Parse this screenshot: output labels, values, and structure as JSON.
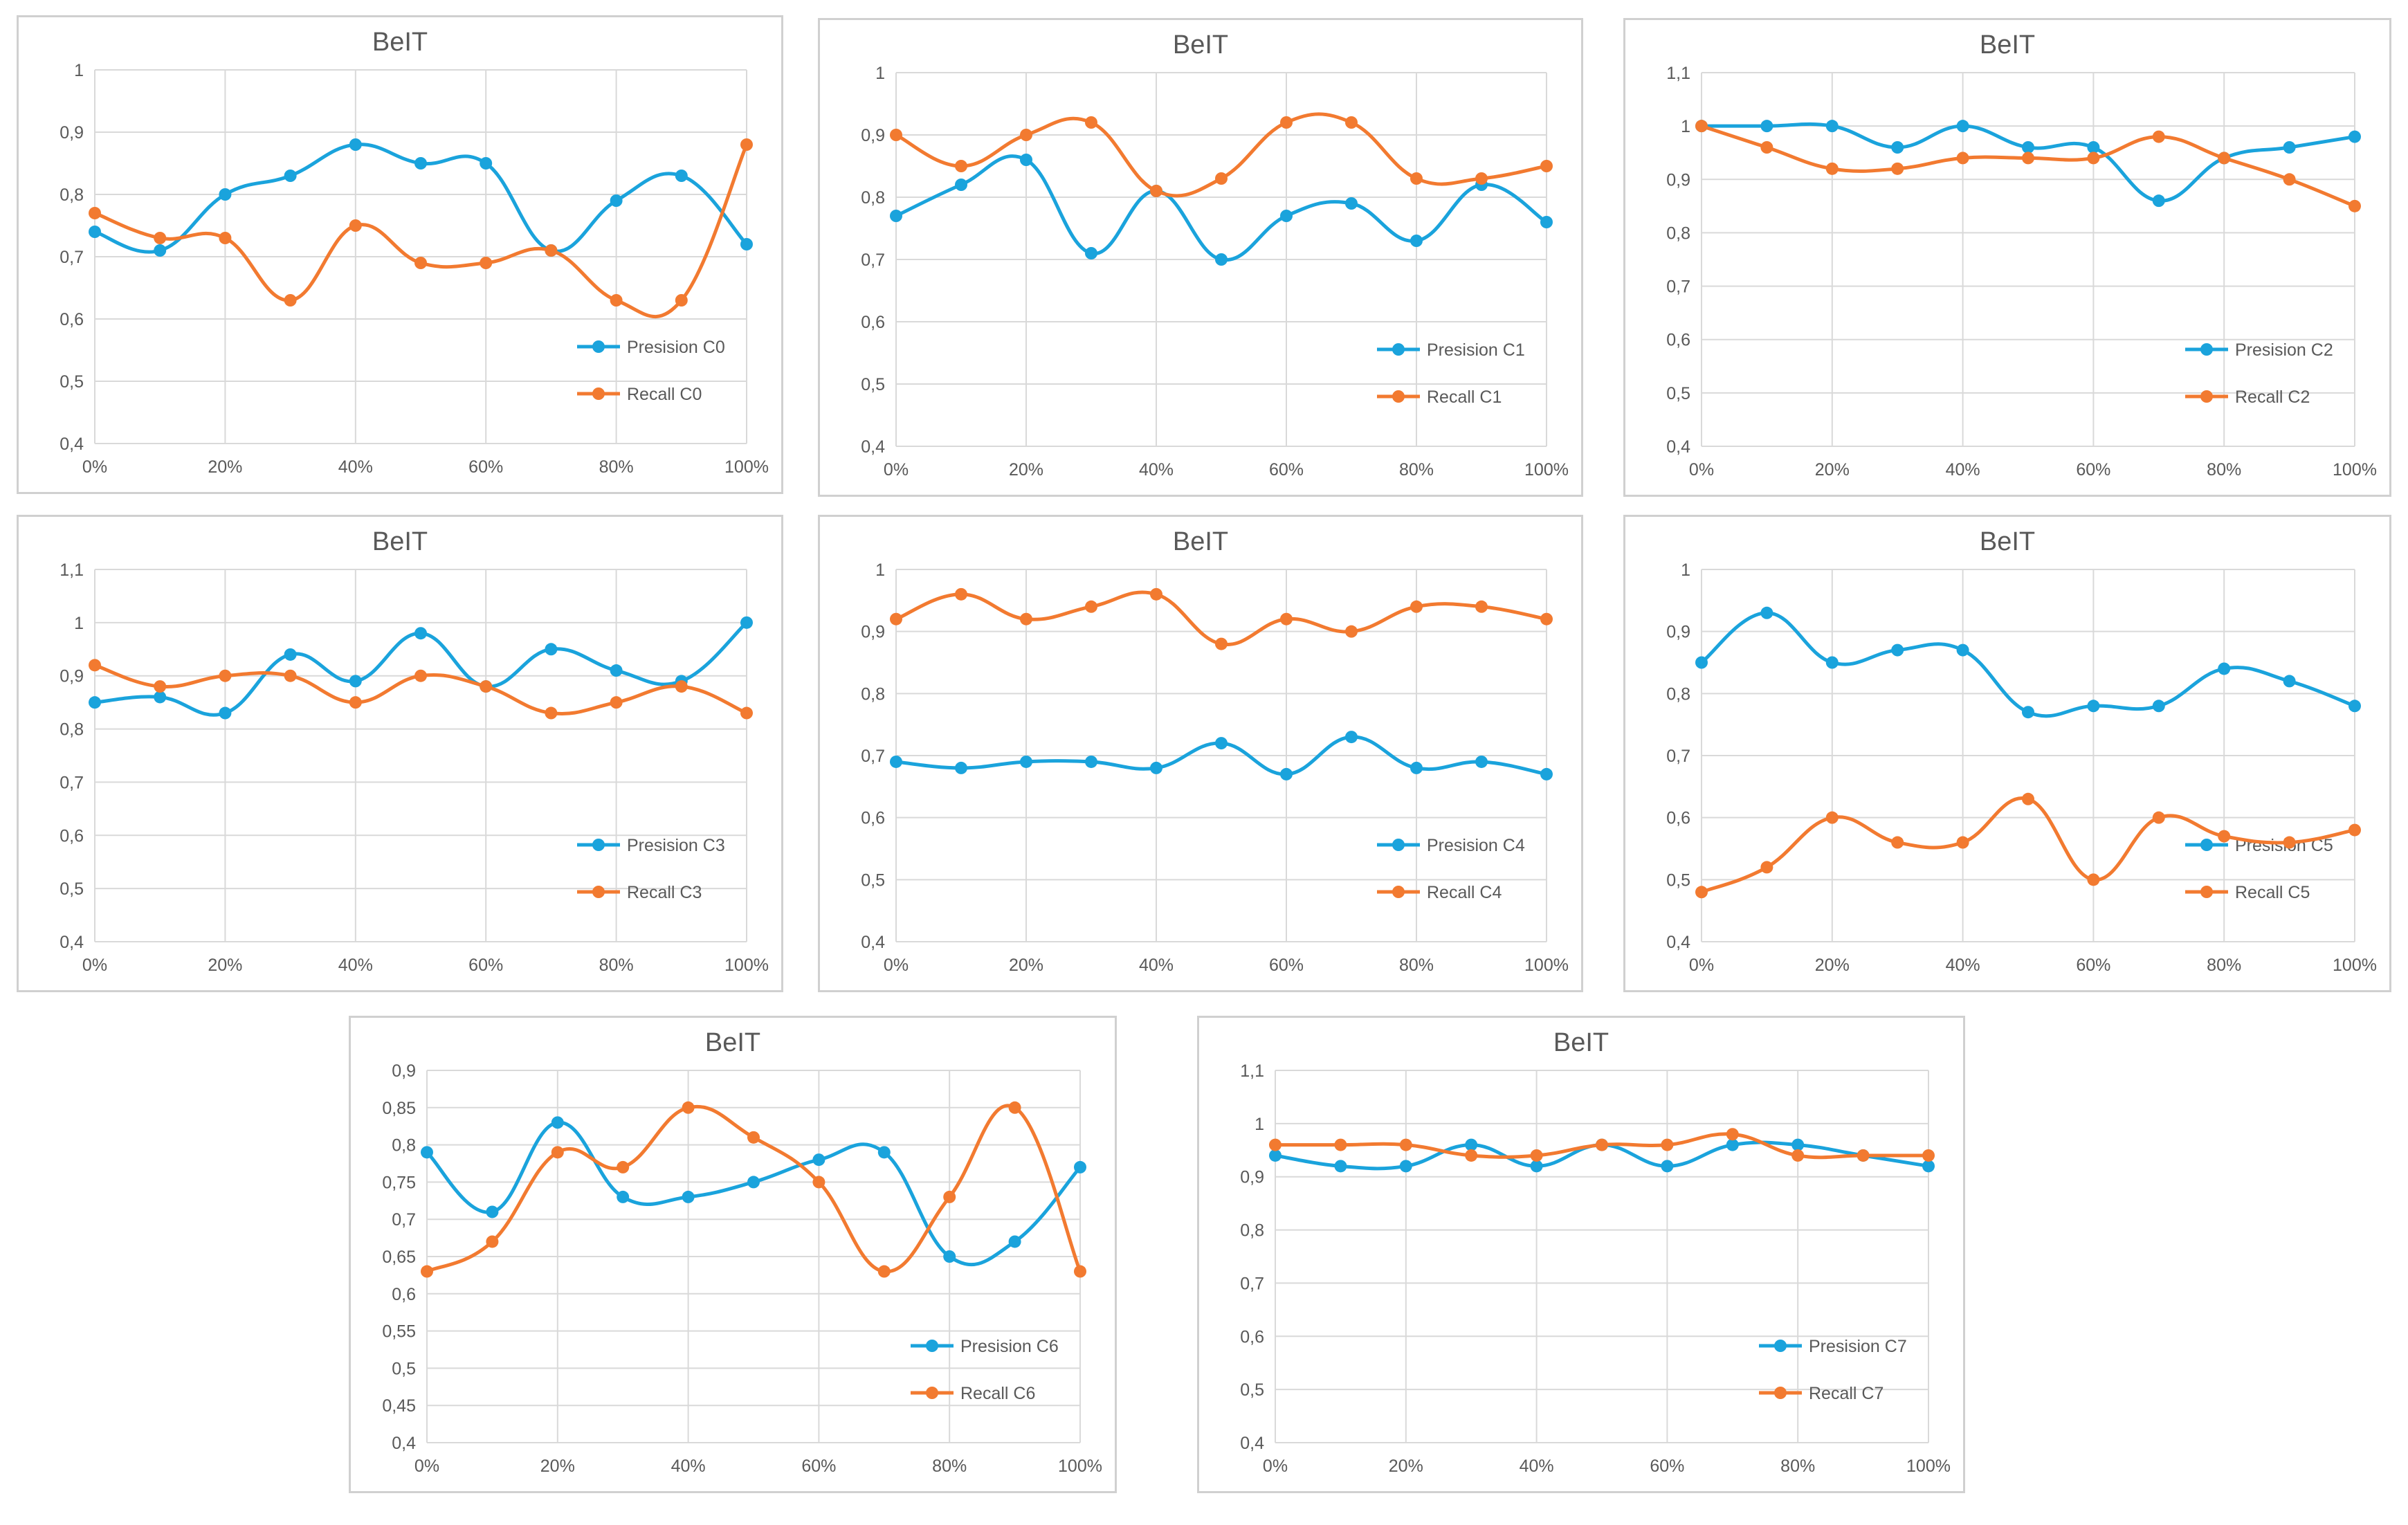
{
  "palette": {
    "precision": "#1AA3DC",
    "recall": "#F27A30",
    "grid": "#d9d9d9",
    "axis_text": "#595959",
    "title": "#595959"
  },
  "x_ticks": [
    "0%",
    "20%",
    "40%",
    "60%",
    "80%",
    "100%"
  ],
  "chart_data": [
    {
      "type": "line",
      "title": "BeIT",
      "ylim": [
        0.4,
        1.0
      ],
      "yticks": [
        "0,4",
        "0,5",
        "0,6",
        "0,7",
        "0,8",
        "0,9",
        "1"
      ],
      "x": [
        0,
        10,
        20,
        30,
        40,
        50,
        60,
        70,
        80,
        90,
        100
      ],
      "series": [
        {
          "name": "Presision C0",
          "values": [
            0.74,
            0.71,
            0.8,
            0.83,
            0.88,
            0.85,
            0.85,
            0.71,
            0.79,
            0.83,
            0.72
          ]
        },
        {
          "name": "Recall C0",
          "values": [
            0.77,
            0.73,
            0.73,
            0.63,
            0.75,
            0.69,
            0.69,
            0.71,
            0.63,
            0.63,
            0.88
          ]
        }
      ],
      "legend": "right"
    },
    {
      "type": "line",
      "title": "BeIT",
      "ylim": [
        0.4,
        1.0
      ],
      "yticks": [
        "0,4",
        "0,5",
        "0,6",
        "0,7",
        "0,8",
        "0,9",
        "1"
      ],
      "x": [
        0,
        10,
        20,
        30,
        40,
        50,
        60,
        70,
        80,
        90,
        100
      ],
      "series": [
        {
          "name": "Presision C1",
          "values": [
            0.77,
            0.82,
            0.86,
            0.71,
            0.81,
            0.7,
            0.77,
            0.79,
            0.73,
            0.82,
            0.76
          ]
        },
        {
          "name": "Recall C1",
          "values": [
            0.9,
            0.85,
            0.9,
            0.92,
            0.81,
            0.83,
            0.92,
            0.92,
            0.83,
            0.83,
            0.85
          ]
        }
      ],
      "legend": "right"
    },
    {
      "type": "line",
      "title": "BeIT",
      "ylim": [
        0.4,
        1.1
      ],
      "yticks": [
        "0,4",
        "0,5",
        "0,6",
        "0,7",
        "0,8",
        "0,9",
        "1",
        "1,1"
      ],
      "x": [
        0,
        10,
        20,
        30,
        40,
        50,
        60,
        70,
        80,
        90,
        100
      ],
      "series": [
        {
          "name": "Presision C2",
          "values": [
            1.0,
            1.0,
            1.0,
            0.96,
            1.0,
            0.96,
            0.96,
            0.86,
            0.94,
            0.96,
            0.98
          ]
        },
        {
          "name": "Recall C2",
          "values": [
            1.0,
            0.96,
            0.92,
            0.92,
            0.94,
            0.94,
            0.94,
            0.98,
            0.94,
            0.9,
            0.85
          ]
        }
      ],
      "legend": "right"
    },
    {
      "type": "line",
      "title": "BeIT",
      "ylim": [
        0.4,
        1.1
      ],
      "yticks": [
        "0,4",
        "0,5",
        "0,6",
        "0,7",
        "0,8",
        "0,9",
        "1",
        "1,1"
      ],
      "x": [
        0,
        10,
        20,
        30,
        40,
        50,
        60,
        70,
        80,
        90,
        100
      ],
      "series": [
        {
          "name": "Presision C3",
          "values": [
            0.85,
            0.86,
            0.83,
            0.94,
            0.89,
            0.98,
            0.88,
            0.95,
            0.91,
            0.89,
            1.0
          ]
        },
        {
          "name": "Recall C3",
          "values": [
            0.92,
            0.88,
            0.9,
            0.9,
            0.85,
            0.9,
            0.88,
            0.83,
            0.85,
            0.88,
            0.83
          ]
        }
      ],
      "legend": "right"
    },
    {
      "type": "line",
      "title": "BeIT",
      "ylim": [
        0.4,
        1.0
      ],
      "yticks": [
        "0,4",
        "0,5",
        "0,6",
        "0,7",
        "0,8",
        "0,9",
        "1"
      ],
      "x": [
        0,
        10,
        20,
        30,
        40,
        50,
        60,
        70,
        80,
        90,
        100
      ],
      "series": [
        {
          "name": "Presision C4",
          "values": [
            0.69,
            0.68,
            0.69,
            0.69,
            0.68,
            0.72,
            0.67,
            0.73,
            0.68,
            0.69,
            0.67
          ]
        },
        {
          "name": "Recall C4",
          "values": [
            0.92,
            0.96,
            0.92,
            0.94,
            0.96,
            0.88,
            0.92,
            0.9,
            0.94,
            0.94,
            0.92
          ]
        }
      ],
      "legend": "right"
    },
    {
      "type": "line",
      "title": "BeIT",
      "ylim": [
        0.4,
        1.0
      ],
      "yticks": [
        "0,4",
        "0,5",
        "0,6",
        "0,7",
        "0,8",
        "0,9",
        "1"
      ],
      "x": [
        0,
        10,
        20,
        30,
        40,
        50,
        60,
        70,
        80,
        90,
        100
      ],
      "series": [
        {
          "name": "Presision C5",
          "values": [
            0.85,
            0.93,
            0.85,
            0.87,
            0.87,
            0.77,
            0.78,
            0.78,
            0.84,
            0.82,
            0.78
          ]
        },
        {
          "name": "Recall C5",
          "values": [
            0.48,
            0.52,
            0.6,
            0.56,
            0.56,
            0.63,
            0.5,
            0.6,
            0.57,
            0.56,
            0.58
          ]
        }
      ],
      "legend": "right"
    },
    {
      "type": "line",
      "title": "BeIT",
      "ylim": [
        0.4,
        0.9
      ],
      "yticks": [
        "0,4",
        "0,45",
        "0,5",
        "0,55",
        "0,6",
        "0,65",
        "0,7",
        "0,75",
        "0,8",
        "0,85",
        "0,9"
      ],
      "x": [
        0,
        10,
        20,
        30,
        40,
        50,
        60,
        70,
        80,
        90,
        100
      ],
      "series": [
        {
          "name": "Presision C6",
          "values": [
            0.79,
            0.71,
            0.83,
            0.73,
            0.73,
            0.75,
            0.78,
            0.79,
            0.65,
            0.67,
            0.77
          ]
        },
        {
          "name": "Recall C6",
          "values": [
            0.63,
            0.67,
            0.79,
            0.77,
            0.85,
            0.81,
            0.75,
            0.63,
            0.73,
            0.85,
            0.63
          ]
        }
      ],
      "legend": "right"
    },
    {
      "type": "line",
      "title": "BeIT",
      "ylim": [
        0.4,
        1.1
      ],
      "yticks": [
        "0,4",
        "0,5",
        "0,6",
        "0,7",
        "0,8",
        "0,9",
        "1",
        "1,1"
      ],
      "x": [
        0,
        10,
        20,
        30,
        40,
        50,
        60,
        70,
        80,
        90,
        100
      ],
      "series": [
        {
          "name": "Presision C7",
          "values": [
            0.94,
            0.92,
            0.92,
            0.96,
            0.92,
            0.96,
            0.92,
            0.96,
            0.96,
            0.94,
            0.92
          ]
        },
        {
          "name": "Recall C7",
          "values": [
            0.96,
            0.96,
            0.96,
            0.94,
            0.94,
            0.96,
            0.96,
            0.98,
            0.94,
            0.94,
            0.94
          ]
        }
      ],
      "legend": "right"
    }
  ]
}
